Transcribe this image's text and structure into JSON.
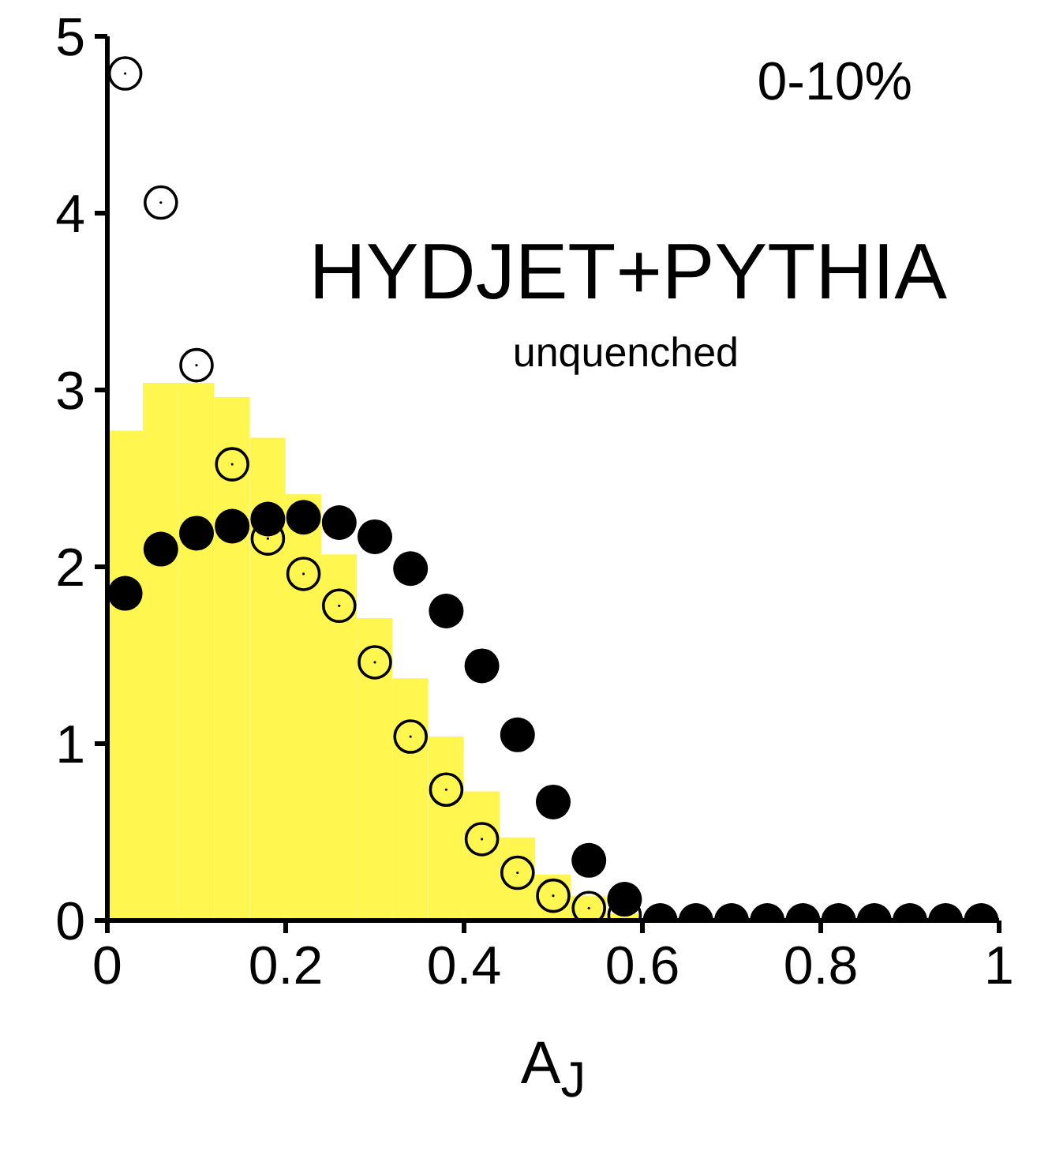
{
  "chart_data": {
    "type": "histogram",
    "xlabel": "A$_{J}$",
    "annotations": [
      "0-10%",
      "HYDJET+PYTHIA",
      "unquenched"
    ],
    "bins": [
      0,
      0.04,
      0.08,
      0.12,
      0.16,
      0.2,
      0.24,
      0.28,
      0.32,
      0.36,
      0.4,
      0.44,
      0.48,
      0.52,
      0.56,
      0.6
    ],
    "values": [
      2.77,
      3.04,
      3.04,
      2.96,
      2.73,
      2.41,
      2.07,
      1.71,
      1.37,
      1.04,
      0.73,
      0.47,
      0.26,
      0.14,
      0.04
    ],
    "color": "#fff64f",
    "series": [
      {
        "type": "scatter",
        "color": "#000000",
        "marker": "circle",
        "x": [
          0.02,
          0.06,
          0.1,
          0.14,
          0.18,
          0.22,
          0.26,
          0.3,
          0.34,
          0.38,
          0.42,
          0.46,
          0.5,
          0.54,
          0.58,
          0.62,
          0.66,
          0.7,
          0.74,
          0.78,
          0.82,
          0.86,
          0.9,
          0.94,
          0.98
        ],
        "values": [
          1.85,
          2.1,
          2.19,
          2.23,
          2.27,
          2.28,
          2.25,
          2.17,
          1.99,
          1.75,
          1.44,
          1.05,
          0.67,
          0.34,
          0.12,
          0,
          0,
          0,
          0,
          0,
          0,
          0,
          0,
          0,
          0
        ]
      },
      {
        "type": "scatter",
        "color": "#000000",
        "marker": "circle",
        "x": [
          0.02,
          0.06,
          0.1,
          0.14,
          0.18,
          0.22,
          0.26,
          0.3,
          0.34,
          0.38,
          0.42,
          0.46,
          0.5,
          0.54,
          0.58
        ],
        "values": [
          4.79,
          4.06,
          3.14,
          2.58,
          2.16,
          1.96,
          1.78,
          1.46,
          1.04,
          0.74,
          0.46,
          0.27,
          0.14,
          0.07,
          0.03
        ]
      }
    ],
    "xlim": [
      0,
      1
    ],
    "xticks": [
      0,
      0.2,
      0.4,
      0.6,
      0.8,
      1
    ],
    "ylim": [
      0,
      5
    ],
    "yticks": [
      0,
      1,
      2,
      3,
      4,
      5
    ],
    "grid": false,
    "legend": false
  }
}
